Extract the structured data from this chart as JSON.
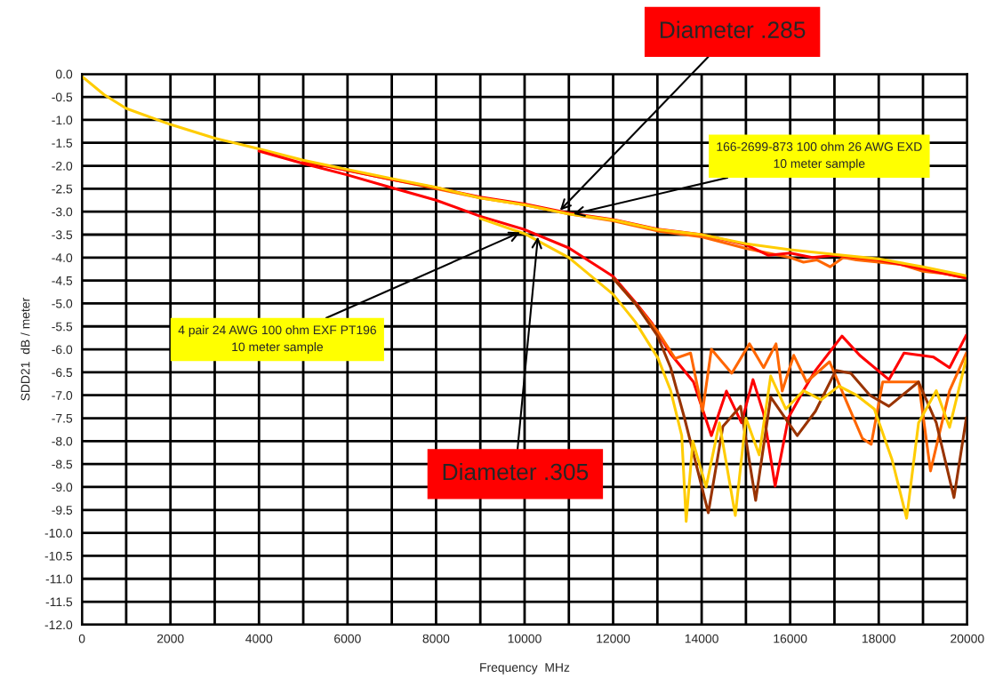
{
  "chart_data": {
    "type": "line",
    "xlabel": "Frequency  MHz",
    "ylabel": "SDD21  dB / meter",
    "xlim": [
      0,
      20000
    ],
    "ylim": [
      -12.0,
      0.0
    ],
    "xticks": [
      0,
      {
        "value": 1000,
        "label": null
      },
      2000,
      {
        "value": 3000,
        "label": null
      },
      4000,
      {
        "value": 5000,
        "label": null
      },
      6000,
      {
        "value": 7000,
        "label": null
      },
      8000,
      {
        "value": 9000,
        "label": null
      },
      10000,
      {
        "value": 11000,
        "label": null
      },
      12000,
      {
        "value": 13000,
        "label": null
      },
      14000,
      {
        "value": 15000,
        "label": null
      },
      16000,
      {
        "value": 17000,
        "label": null
      },
      18000,
      {
        "value": 19000,
        "label": null
      },
      20000
    ],
    "yticks": [
      {
        "value": 0,
        "label": "0.0"
      },
      -0.5,
      {
        "value": -1,
        "label": "-1.0"
      },
      -1.5,
      {
        "value": -2,
        "label": "-2.0"
      },
      -2.5,
      {
        "value": -3,
        "label": "-3.0"
      },
      -3.5,
      {
        "value": -4,
        "label": "-4.0"
      },
      -4.5,
      {
        "value": -5,
        "label": "-5.0"
      },
      -5.5,
      {
        "value": -6,
        "label": "-6.0"
      },
      -6.5,
      {
        "value": -7,
        "label": "-7.0"
      },
      -7.5,
      {
        "value": -8,
        "label": "-8.0"
      },
      -8.5,
      {
        "value": -9,
        "label": "-9.0"
      },
      -9.5,
      {
        "value": -10,
        "label": "-10.0"
      },
      -10.5,
      {
        "value": -11,
        "label": "-11.0"
      },
      -11.5,
      {
        "value": -12,
        "label": "-12.0"
      }
    ],
    "grid": true,
    "marker": "none",
    "line_style": "solid",
    "series": [
      {
        "color": "#ff6600",
        "x": [
          5000,
          6000,
          7000,
          8000,
          9000,
          10000,
          11000,
          12000,
          13000,
          14000,
          15000,
          15500,
          16000,
          16300,
          16600,
          16900,
          17200,
          17500,
          18000,
          18500,
          19000,
          19500,
          20000
        ],
        "values": [
          -1.9,
          -2.1,
          -2.3,
          -2.5,
          -2.7,
          -2.85,
          -3.05,
          -3.2,
          -3.42,
          -3.55,
          -3.8,
          -3.9,
          -4.0,
          -4.1,
          -4.05,
          -4.2,
          -4.0,
          -4.05,
          -4.1,
          -4.15,
          -4.3,
          -4.35,
          -4.45
        ]
      },
      {
        "color": "#ff0000",
        "x": [
          5000,
          6000,
          7000,
          8000,
          9000,
          10000,
          11000,
          12000,
          13000,
          14000,
          15000,
          15500,
          16000,
          16500,
          17000,
          17500,
          18000,
          18500,
          19000,
          19500,
          20000
        ],
        "values": [
          -1.9,
          -2.1,
          -2.3,
          -2.48,
          -2.68,
          -2.83,
          -3.03,
          -3.17,
          -3.38,
          -3.5,
          -3.72,
          -3.95,
          -3.9,
          -4.0,
          -3.95,
          -4.0,
          -4.05,
          -4.15,
          -4.25,
          -4.35,
          -4.45
        ]
      },
      {
        "color": "#ffcc00",
        "x": [
          0,
          500,
          1000,
          2000,
          3000,
          4000,
          5000,
          6000,
          7000,
          8000,
          9000,
          10000,
          11000,
          12000,
          13000,
          14000,
          15000,
          16000,
          17000,
          18000,
          19000,
          20000
        ],
        "values": [
          -0.05,
          -0.45,
          -0.75,
          -1.1,
          -1.4,
          -1.63,
          -1.88,
          -2.08,
          -2.28,
          -2.47,
          -2.7,
          -2.85,
          -3.05,
          -3.18,
          -3.39,
          -3.5,
          -3.7,
          -3.83,
          -3.93,
          -4.03,
          -4.2,
          -4.4
        ]
      },
      {
        "color": "#ff0000",
        "x": [
          4000,
          5000,
          6000,
          7000,
          8000,
          9000,
          10000,
          11000,
          12000,
          12500,
          12870,
          13300,
          13815,
          14220,
          14560,
          14900,
          15160,
          15400,
          15660,
          15960,
          16300,
          16570,
          17170,
          17570,
          18230,
          18570,
          19240,
          19600,
          19980
        ],
        "values": [
          -1.68,
          -1.95,
          -2.2,
          -2.48,
          -2.75,
          -3.1,
          -3.39,
          -3.79,
          -4.41,
          -4.97,
          -5.42,
          -6.1,
          -6.71,
          -7.88,
          -6.91,
          -7.6,
          -6.66,
          -7.4,
          -8.98,
          -7.49,
          -6.9,
          -6.46,
          -5.71,
          -6.13,
          -6.66,
          -6.08,
          -6.17,
          -6.4,
          -5.69
        ]
      },
      {
        "color": "#ff6600",
        "x": [
          12000,
          12500,
          13000,
          13400,
          13750,
          14020,
          14220,
          14680,
          15080,
          15400,
          15680,
          15820,
          16080,
          16370,
          16890,
          17300,
          17630,
          17830,
          18090,
          18900,
          19170,
          19600,
          19980
        ],
        "values": [
          -4.45,
          -5.0,
          -5.6,
          -6.2,
          -6.08,
          -7.35,
          -6.0,
          -6.52,
          -5.88,
          -6.4,
          -5.88,
          -6.91,
          -6.13,
          -6.71,
          -6.27,
          -7.2,
          -7.94,
          -8.07,
          -6.71,
          -6.71,
          -8.65,
          -6.9,
          -6.08
        ]
      },
      {
        "color": "#993300",
        "x": [
          12000,
          12500,
          13000,
          13300,
          13610,
          13900,
          14150,
          14480,
          14880,
          15220,
          15560,
          16160,
          16570,
          17030,
          17370,
          17800,
          18230,
          18900,
          19300,
          19700,
          19980
        ],
        "values": [
          -4.45,
          -5.0,
          -5.7,
          -6.4,
          -7.49,
          -8.6,
          -9.56,
          -7.68,
          -7.24,
          -9.29,
          -7.04,
          -7.88,
          -7.35,
          -6.46,
          -6.52,
          -7.0,
          -7.24,
          -6.71,
          -7.6,
          -9.23,
          -7.49
        ]
      },
      {
        "color": "#ffcc00",
        "x": [
          9000,
          10000,
          11000,
          12000,
          12500,
          13012,
          13300,
          13550,
          13650,
          13800,
          14100,
          14400,
          14760,
          15000,
          15300,
          15560,
          15900,
          16300,
          16700,
          17100,
          17500,
          17900,
          18300,
          18630,
          18900,
          19300,
          19600,
          19980
        ],
        "values": [
          -3.15,
          -3.48,
          -4.0,
          -4.8,
          -5.4,
          -6.19,
          -6.9,
          -7.88,
          -9.75,
          -8.0,
          -9.0,
          -7.6,
          -9.62,
          -7.5,
          -8.3,
          -6.58,
          -7.3,
          -6.9,
          -7.1,
          -6.8,
          -7.0,
          -7.3,
          -8.4,
          -9.68,
          -7.6,
          -6.9,
          -7.7,
          -6.19
        ]
      }
    ],
    "annotations": [
      {
        "text": "Diameter .285",
        "x": 10800,
        "y": -2.97
      },
      {
        "text": "166-2699-873 100 ohm 26 AWG EXD\n10 meter sample",
        "x": 11100,
        "y": -3.05
      },
      {
        "text": "4 pair 24 AWG 100 ohm EXF PT196\n10 meter sample",
        "x": 9900,
        "y": -3.45
      },
      {
        "text": "Diameter .305",
        "x": 10300,
        "y": -3.55
      }
    ]
  }
}
